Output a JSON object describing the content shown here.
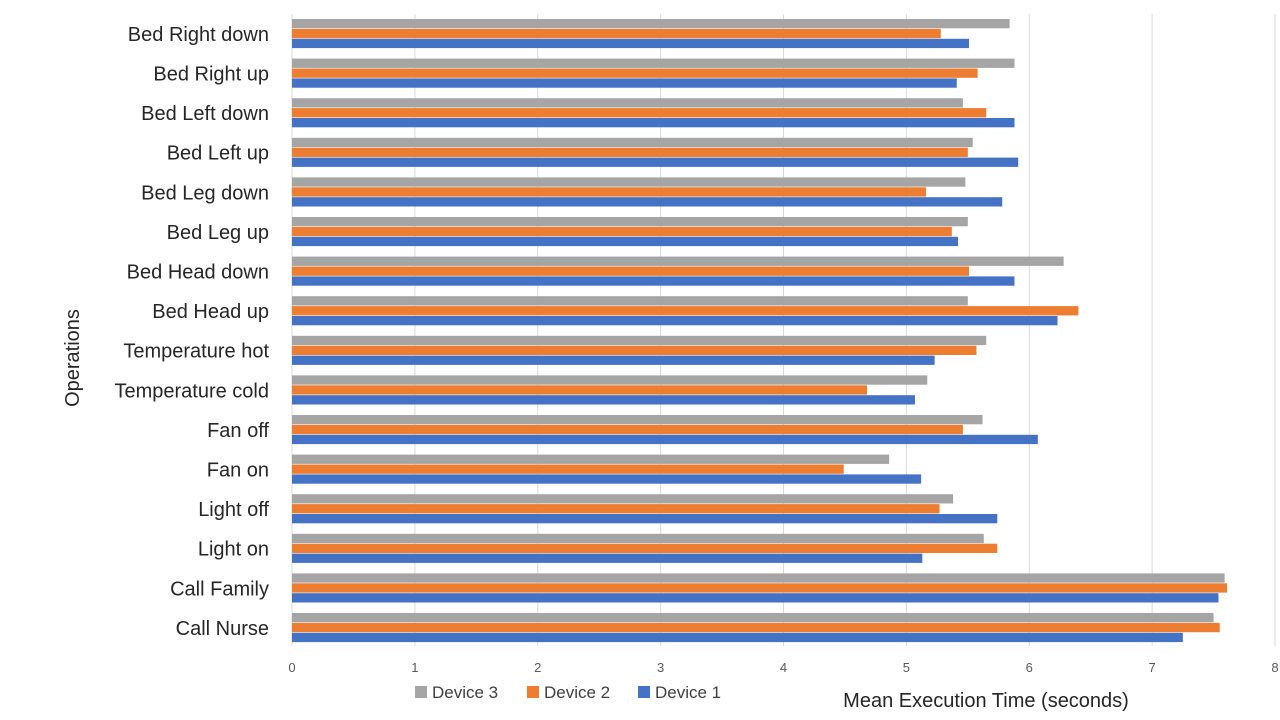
{
  "chart_data": {
    "type": "bar",
    "orientation": "horizontal",
    "xlabel": "Mean Execution Time (seconds)",
    "ylabel": "Operations",
    "xlim": [
      0,
      8
    ],
    "xticks": [
      "0",
      "1",
      "2",
      "3",
      "4",
      "5",
      "6",
      "7",
      "8"
    ],
    "grid": "vertical",
    "legend_position": "bottom",
    "categories": [
      "Bed Right down",
      "Bed Right up",
      "Bed Left down",
      "Bed Left up",
      "Bed Leg down",
      "Bed Leg up",
      "Bed Head down",
      "Bed Head up",
      "Temperature hot",
      "Temperature cold",
      "Fan off",
      "Fan on",
      "Light off",
      "Light on",
      "Call Family",
      "Call Nurse"
    ],
    "series": [
      {
        "name": "Device 3",
        "color": "#a5a5a5",
        "values": [
          5.84,
          5.88,
          5.46,
          5.54,
          5.48,
          5.5,
          6.28,
          5.5,
          5.65,
          5.17,
          5.62,
          4.86,
          5.38,
          5.63,
          7.59,
          7.5
        ]
      },
      {
        "name": "Device 2",
        "color": "#ed7d31",
        "values": [
          5.28,
          5.58,
          5.65,
          5.5,
          5.16,
          5.37,
          5.51,
          6.4,
          5.57,
          4.68,
          5.46,
          4.49,
          5.27,
          5.74,
          7.61,
          7.55
        ]
      },
      {
        "name": "Device 1",
        "color": "#4472c4",
        "values": [
          5.51,
          5.41,
          5.88,
          5.91,
          5.78,
          5.42,
          5.88,
          6.23,
          5.23,
          5.07,
          6.07,
          5.12,
          5.74,
          5.13,
          7.54,
          7.25
        ]
      }
    ]
  }
}
